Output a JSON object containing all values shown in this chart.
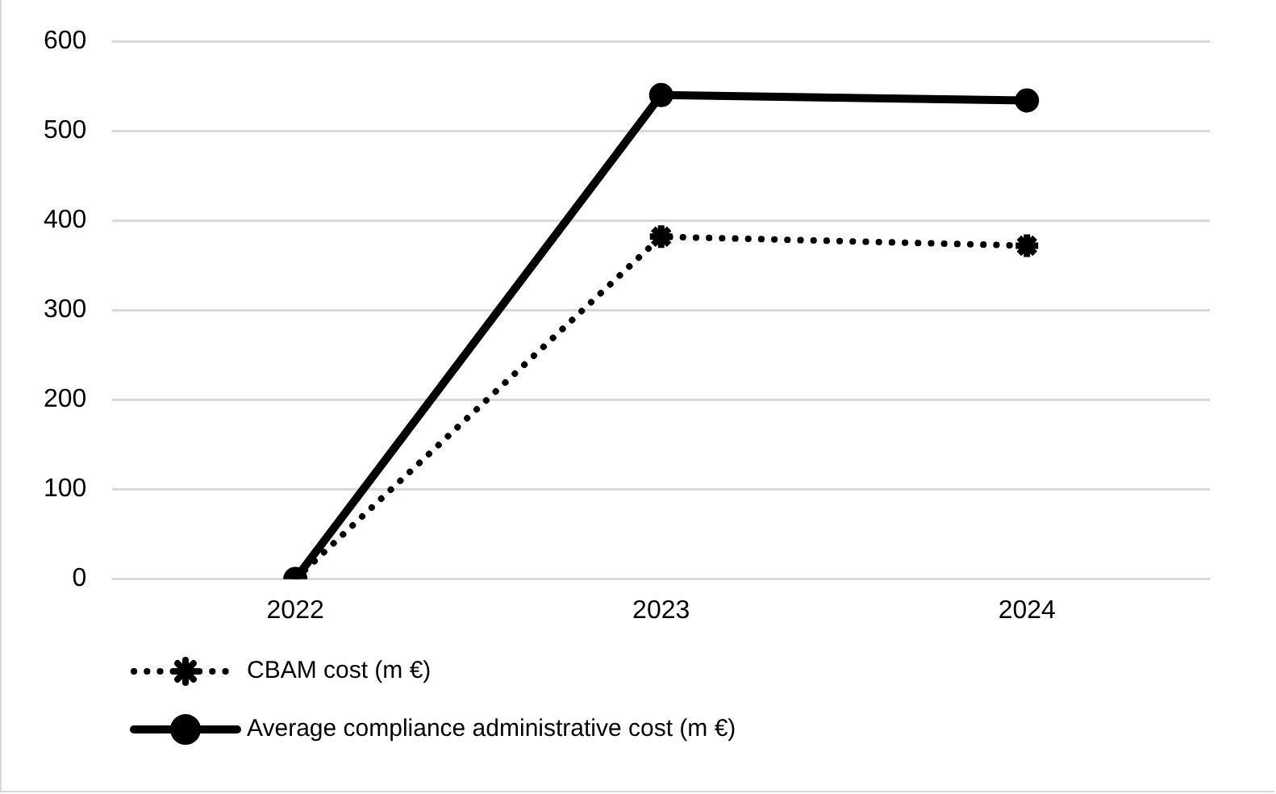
{
  "chart_data": {
    "type": "line",
    "categories": [
      "2022",
      "2023",
      "2024"
    ],
    "series": [
      {
        "name": "CBAM cost (m €)",
        "color": "#000000",
        "values": [
          0,
          382,
          372
        ],
        "line_style": "dotted",
        "marker": "cross"
      },
      {
        "name": "Average compliance administrative cost (m €)",
        "color": "#000000",
        "values": [
          0,
          540,
          534
        ],
        "line_style": "solid",
        "marker": "circle"
      }
    ],
    "ylim": [
      0,
      600
    ],
    "yticks": [
      0,
      100,
      200,
      300,
      400,
      500,
      600
    ],
    "grid": "y",
    "legend": "bottom"
  }
}
